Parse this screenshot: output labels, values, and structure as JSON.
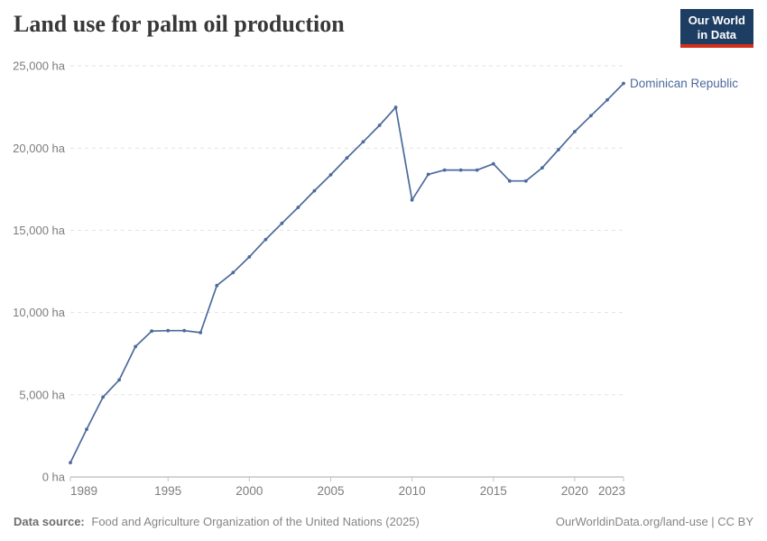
{
  "header": {
    "logo": {
      "line1": "Our World",
      "line2": "in Data"
    }
  },
  "chart_data": {
    "type": "line",
    "title": "Land use for palm oil production",
    "unit": "ha",
    "grid": true,
    "legend_position": "end-of-line",
    "xlim": [
      1989,
      2023
    ],
    "ylim": [
      0,
      25000
    ],
    "x": [
      1989,
      1990,
      1991,
      1992,
      1993,
      1994,
      1995,
      1996,
      1997,
      1998,
      1999,
      2000,
      2001,
      2002,
      2003,
      2004,
      2005,
      2006,
      2007,
      2008,
      2009,
      2010,
      2011,
      2012,
      2013,
      2014,
      2015,
      2016,
      2017,
      2018,
      2019,
      2020,
      2021,
      2022,
      2023
    ],
    "series": [
      {
        "name": "Dominican Republic",
        "color": "#4C6A9C",
        "values": [
          870,
          2900,
          4850,
          5900,
          7930,
          8870,
          8900,
          8900,
          8780,
          11640,
          12430,
          13380,
          14440,
          15420,
          16390,
          17400,
          18370,
          19400,
          20380,
          21380,
          22480,
          16840,
          18400,
          18660,
          18660,
          18660,
          19040,
          18000,
          18000,
          18800,
          19900,
          21000,
          21970,
          22930,
          23930
        ]
      }
    ],
    "xticks": [
      {
        "value": 1989,
        "label": "1989"
      },
      {
        "value": 1995,
        "label": "1995"
      },
      {
        "value": 2000,
        "label": "2000"
      },
      {
        "value": 2005,
        "label": "2005"
      },
      {
        "value": 2010,
        "label": "2010"
      },
      {
        "value": 2015,
        "label": "2015"
      },
      {
        "value": 2020,
        "label": "2020"
      },
      {
        "value": 2023,
        "label": "2023"
      }
    ],
    "yticks": [
      {
        "value": 0,
        "label": "0 ha"
      },
      {
        "value": 5000,
        "label": "5,000 ha"
      },
      {
        "value": 10000,
        "label": "10,000 ha"
      },
      {
        "value": 15000,
        "label": "15,000 ha"
      },
      {
        "value": 20000,
        "label": "20,000 ha"
      },
      {
        "value": 25000,
        "label": "25,000 ha"
      }
    ]
  },
  "footer": {
    "source_label": "Data source:",
    "source_text": "Food and Agriculture Organization of the United Nations (2025)",
    "attribution": "OurWorldinData.org/land-use | CC BY"
  }
}
